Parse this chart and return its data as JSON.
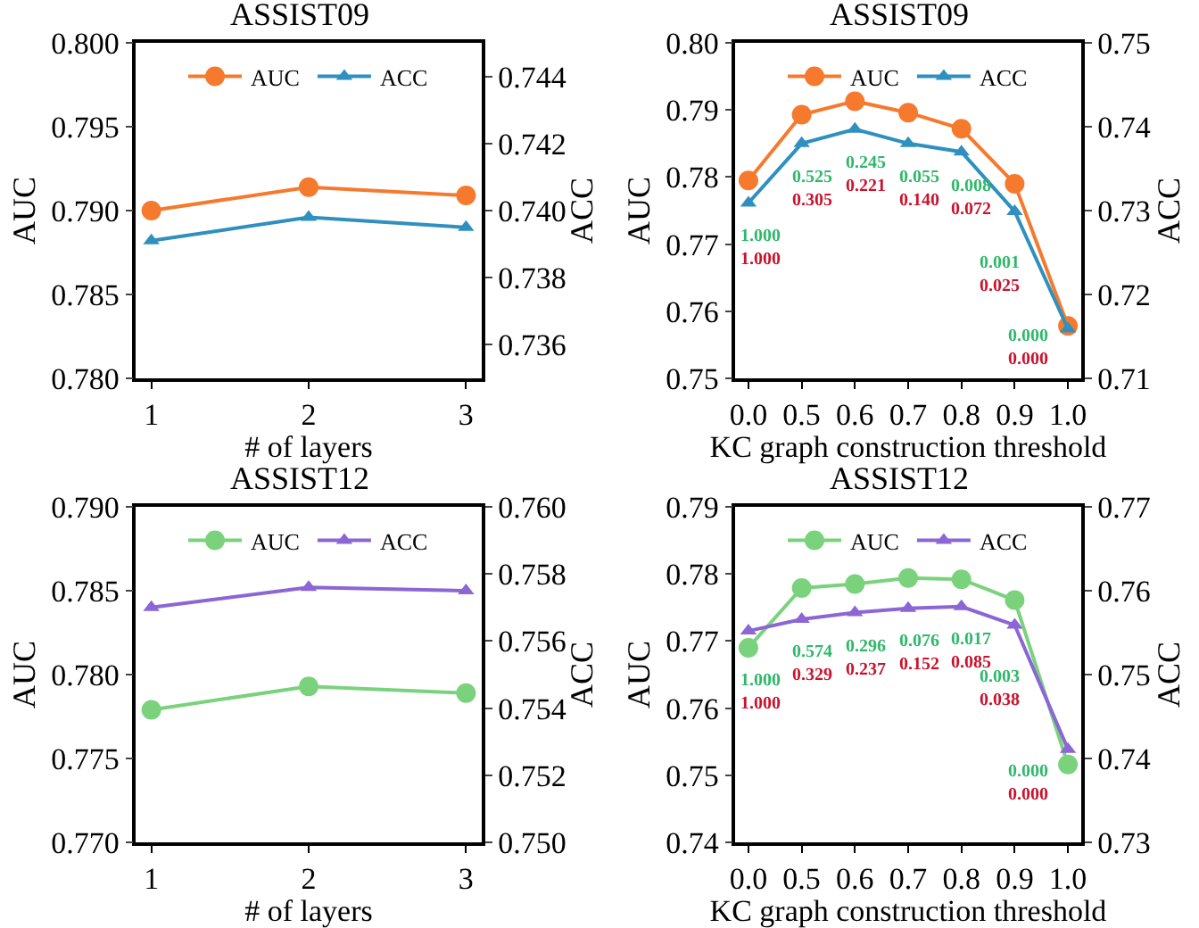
{
  "chart_data": [
    {
      "type": "line",
      "title": "ASSIST09",
      "xlabel": "# of layers",
      "ylabel": "AUC",
      "y2label": "ACC",
      "x": [
        1,
        2,
        3
      ],
      "xlim": [
        0.9,
        3.1
      ],
      "xticks": [
        1,
        2,
        3
      ],
      "ylim": [
        0.78,
        0.8
      ],
      "yticks": [
        {
          "value": 0.78,
          "label": "0.780"
        },
        {
          "value": 0.785,
          "label": "0.785"
        },
        {
          "value": 0.79,
          "label": "0.790"
        },
        {
          "value": 0.795,
          "label": "0.795"
        },
        {
          "value": 0.8,
          "label": "0.800"
        }
      ],
      "y2lim": [
        0.735,
        0.745
      ],
      "y2ticks": [
        {
          "value": 0.736,
          "label": "0.736"
        },
        {
          "value": 0.738,
          "label": "0.738"
        },
        {
          "value": 0.74,
          "label": "0.740"
        },
        {
          "value": 0.742,
          "label": "0.742"
        },
        {
          "value": 0.744,
          "label": "0.744"
        }
      ],
      "grid": false,
      "legend": "top",
      "line_style": "solid",
      "series": [
        {
          "name": "AUC",
          "color": "#f57a2e",
          "marker": "circle",
          "values": [
            0.79,
            0.7914,
            0.7909
          ]
        },
        {
          "name": "ACC",
          "color": "#2f90c0",
          "marker": "triangle",
          "axis": "y2",
          "values": [
            0.7391,
            0.7398,
            0.7395
          ]
        }
      ]
    },
    {
      "type": "line",
      "title": "ASSIST09",
      "xlabel": "KC graph construction threshold",
      "ylabel": "AUC",
      "y2label": "ACC",
      "categories": [
        "0.0",
        "0.5",
        "0.6",
        "0.7",
        "0.8",
        "0.9",
        "1.0"
      ],
      "ylim": [
        0.75,
        0.8
      ],
      "yticks": [
        {
          "value": 0.75,
          "label": "0.75"
        },
        {
          "value": 0.76,
          "label": "0.76"
        },
        {
          "value": 0.77,
          "label": "0.77"
        },
        {
          "value": 0.78,
          "label": "0.78"
        },
        {
          "value": 0.79,
          "label": "0.79"
        },
        {
          "value": 0.8,
          "label": "0.80"
        }
      ],
      "y2lim": [
        0.71,
        0.75
      ],
      "y2ticks": [
        {
          "value": 0.71,
          "label": "0.71"
        },
        {
          "value": 0.72,
          "label": "0.72"
        },
        {
          "value": 0.73,
          "label": "0.73"
        },
        {
          "value": 0.74,
          "label": "0.74"
        },
        {
          "value": 0.75,
          "label": "0.75"
        }
      ],
      "grid": false,
      "legend": "top",
      "line_style": "solid",
      "series": [
        {
          "name": "AUC",
          "color": "#f57a2e",
          "marker": "circle",
          "values": [
            0.7795,
            0.7893,
            0.7913,
            0.7896,
            0.7872,
            0.779,
            0.7578
          ]
        },
        {
          "name": "ACC",
          "color": "#2f90c0",
          "marker": "triangle",
          "axis": "y2",
          "values": [
            0.7309,
            0.738,
            0.7397,
            0.738,
            0.737,
            0.7299,
            0.7159
          ]
        }
      ],
      "annotations": [
        "1.000",
        "1.000",
        "0.525",
        "0.305",
        "0.245",
        "0.221",
        "0.055",
        "0.140",
        "0.008",
        "0.072",
        "0.001",
        "0.025",
        "0.000",
        "0.000"
      ]
    },
    {
      "type": "line",
      "title": "ASSIST12",
      "xlabel": "# of layers",
      "ylabel": "AUC",
      "y2label": "ACC",
      "x": [
        1,
        2,
        3
      ],
      "xlim": [
        0.9,
        3.1
      ],
      "xticks": [
        1,
        2,
        3
      ],
      "ylim": [
        0.77,
        0.79
      ],
      "yticks": [
        {
          "value": 0.77,
          "label": "0.770"
        },
        {
          "value": 0.775,
          "label": "0.775"
        },
        {
          "value": 0.78,
          "label": "0.780"
        },
        {
          "value": 0.785,
          "label": "0.785"
        },
        {
          "value": 0.79,
          "label": "0.790"
        }
      ],
      "y2lim": [
        0.75,
        0.76
      ],
      "y2ticks": [
        {
          "value": 0.75,
          "label": "0.750"
        },
        {
          "value": 0.752,
          "label": "0.752"
        },
        {
          "value": 0.754,
          "label": "0.754"
        },
        {
          "value": 0.756,
          "label": "0.756"
        },
        {
          "value": 0.758,
          "label": "0.758"
        },
        {
          "value": 0.76,
          "label": "0.760"
        }
      ],
      "grid": false,
      "legend": "top",
      "line_style": "solid",
      "series": [
        {
          "name": "AUC",
          "color": "#7bd27d",
          "marker": "circle",
          "values": [
            0.7779,
            0.7793,
            0.7789
          ]
        },
        {
          "name": "ACC",
          "color": "#8b66d4",
          "marker": "triangle",
          "axis": "y2",
          "values": [
            0.757,
            0.7576,
            0.7575
          ]
        }
      ]
    },
    {
      "type": "line",
      "title": "ASSIST12",
      "xlabel": "KC graph construction threshold",
      "ylabel": "AUC",
      "y2label": "ACC",
      "categories": [
        "0.0",
        "0.5",
        "0.6",
        "0.7",
        "0.8",
        "0.9",
        "1.0"
      ],
      "ylim": [
        0.74,
        0.79
      ],
      "yticks": [
        {
          "value": 0.74,
          "label": "0.74"
        },
        {
          "value": 0.75,
          "label": "0.75"
        },
        {
          "value": 0.76,
          "label": "0.76"
        },
        {
          "value": 0.77,
          "label": "0.77"
        },
        {
          "value": 0.78,
          "label": "0.78"
        },
        {
          "value": 0.79,
          "label": "0.79"
        }
      ],
      "y2lim": [
        0.73,
        0.77
      ],
      "y2ticks": [
        {
          "value": 0.73,
          "label": "0.73"
        },
        {
          "value": 0.74,
          "label": "0.74"
        },
        {
          "value": 0.75,
          "label": "0.75"
        },
        {
          "value": 0.76,
          "label": "0.76"
        },
        {
          "value": 0.77,
          "label": "0.77"
        }
      ],
      "grid": false,
      "legend": "top",
      "line_style": "solid",
      "series": [
        {
          "name": "AUC",
          "color": "#7bd27d",
          "marker": "circle",
          "values": [
            0.769,
            0.7779,
            0.7785,
            0.7794,
            0.7792,
            0.7761,
            0.7516
          ]
        },
        {
          "name": "ACC",
          "color": "#8b66d4",
          "marker": "triangle",
          "axis": "y2",
          "values": [
            0.7552,
            0.7566,
            0.7574,
            0.7579,
            0.7581,
            0.7559,
            0.7411
          ]
        }
      ],
      "annotations": [
        "1.000",
        "1.000",
        "0.574",
        "0.329",
        "0.296",
        "0.237",
        "0.076",
        "0.152",
        "0.017",
        "0.085",
        "0.003",
        "0.038",
        "0.000",
        "0.000"
      ]
    }
  ]
}
